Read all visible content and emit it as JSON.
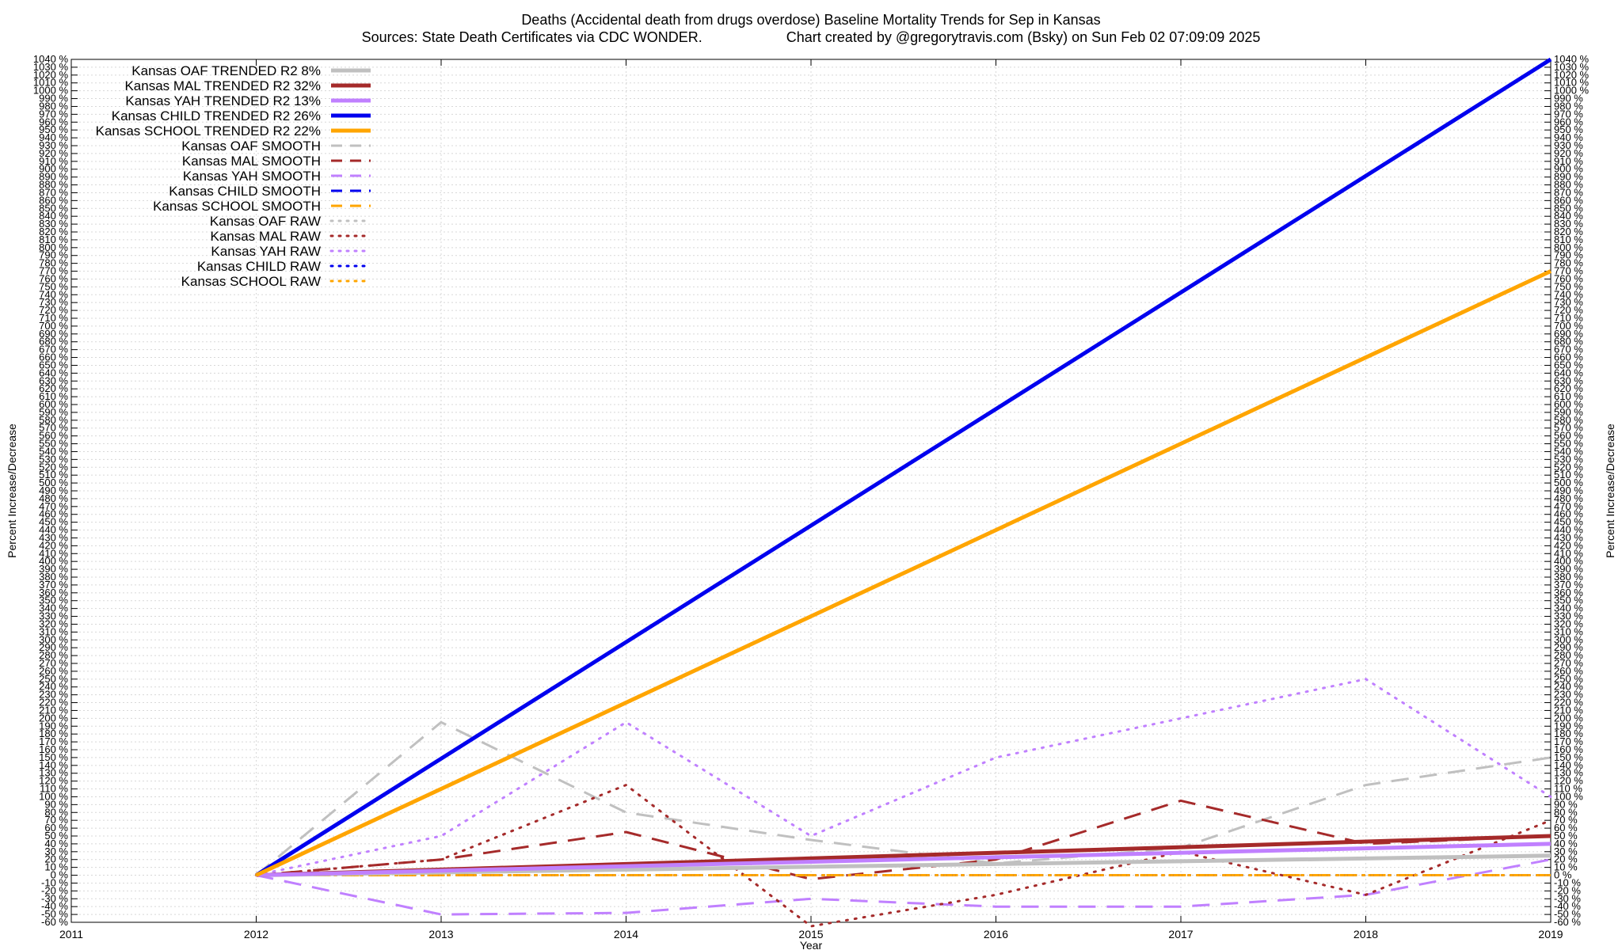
{
  "title_line1": "Deaths (Accidental death from drugs overdose)  Baseline Mortality Trends for Sep in Kansas",
  "title_line2_left": "Sources: State Death Certificates via CDC WONDER.",
  "title_line2_right": "Chart created by @gregorytravis.com (Bsky) on Sun Feb 02 07:09:09 2025",
  "chart_data": {
    "type": "line",
    "xlabel": "Year",
    "ylabel": "Percent Increase/Decrease",
    "xlim": [
      2011,
      2019
    ],
    "ylim": [
      -60,
      1040
    ],
    "x_ticks": [
      "2011",
      "2012",
      "2013",
      "2014",
      "2015",
      "2016",
      "2017",
      "2018",
      "2019"
    ],
    "y_tick_step": 10,
    "y_tick_suffix": " %",
    "grid": true,
    "legend_position": "top-left",
    "series": [
      {
        "name": "Kansas OAF TRENDED R2  8%",
        "color": "#c0c0c0",
        "style": "solid",
        "width": 5,
        "x": [
          2012,
          2019
        ],
        "y": [
          0,
          25
        ]
      },
      {
        "name": "Kansas MAL TRENDED R2  32%",
        "color": "#a52a2a",
        "style": "solid",
        "width": 5,
        "x": [
          2012,
          2019
        ],
        "y": [
          0,
          50
        ]
      },
      {
        "name": "Kansas YAH TRENDED R2  13%",
        "color": "#c080ff",
        "style": "solid",
        "width": 5,
        "x": [
          2012,
          2019
        ],
        "y": [
          0,
          40
        ]
      },
      {
        "name": "Kansas CHILD TRENDED R2  26%",
        "color": "#0000ee",
        "style": "solid",
        "width": 5,
        "x": [
          2012,
          2019
        ],
        "y": [
          0,
          1040
        ]
      },
      {
        "name": "Kansas SCHOOL TRENDED R2  22%",
        "color": "#ffa500",
        "style": "solid",
        "width": 5,
        "x": [
          2012,
          2019
        ],
        "y": [
          0,
          770
        ]
      },
      {
        "name": "Kansas OAF SMOOTH",
        "color": "#c0c0c0",
        "style": "dashed",
        "width": 3,
        "x": [
          2012,
          2013,
          2014,
          2015,
          2016,
          2017,
          2018,
          2019
        ],
        "y": [
          0,
          195,
          80,
          45,
          15,
          35,
          115,
          150
        ]
      },
      {
        "name": "Kansas MAL SMOOTH",
        "color": "#a52a2a",
        "style": "dashed",
        "width": 3,
        "x": [
          2012,
          2013,
          2014,
          2015,
          2016,
          2017,
          2018,
          2019
        ],
        "y": [
          0,
          20,
          55,
          -5,
          20,
          95,
          40,
          50
        ]
      },
      {
        "name": "Kansas YAH SMOOTH",
        "color": "#c080ff",
        "style": "dashed",
        "width": 3,
        "x": [
          2012,
          2013,
          2014,
          2015,
          2016,
          2017,
          2018,
          2019
        ],
        "y": [
          0,
          -50,
          -48,
          -30,
          -40,
          -40,
          -25,
          20
        ]
      },
      {
        "name": "Kansas CHILD SMOOTH",
        "color": "#0000ee",
        "style": "dashed",
        "width": 3,
        "x": [
          2012,
          2019
        ],
        "y": [
          0,
          0
        ]
      },
      {
        "name": "Kansas SCHOOL SMOOTH",
        "color": "#ffa500",
        "style": "dashed",
        "width": 3,
        "x": [
          2012,
          2019
        ],
        "y": [
          0,
          0
        ]
      },
      {
        "name": "Kansas OAF RAW",
        "color": "#c0c0c0",
        "style": "dotted",
        "width": 3,
        "x": [
          2012,
          2019
        ],
        "y": [
          0,
          0
        ]
      },
      {
        "name": "Kansas MAL RAW",
        "color": "#a52a2a",
        "style": "dotted",
        "width": 3,
        "x": [
          2012,
          2013,
          2014,
          2015,
          2016,
          2017,
          2018,
          2019
        ],
        "y": [
          0,
          20,
          115,
          -65,
          -25,
          30,
          -25,
          70
        ]
      },
      {
        "name": "Kansas YAH RAW",
        "color": "#c080ff",
        "style": "dotted",
        "width": 3,
        "x": [
          2012,
          2013,
          2014,
          2015,
          2016,
          2017,
          2018,
          2019
        ],
        "y": [
          0,
          50,
          195,
          50,
          150,
          200,
          250,
          100
        ]
      },
      {
        "name": "Kansas CHILD RAW",
        "color": "#0000ee",
        "style": "dotted",
        "width": 3,
        "x": [
          2012,
          2019
        ],
        "y": [
          0,
          0
        ]
      },
      {
        "name": "Kansas SCHOOL RAW",
        "color": "#ffa500",
        "style": "dotted",
        "width": 3,
        "x": [
          2012,
          2019
        ],
        "y": [
          0,
          0
        ]
      }
    ]
  }
}
